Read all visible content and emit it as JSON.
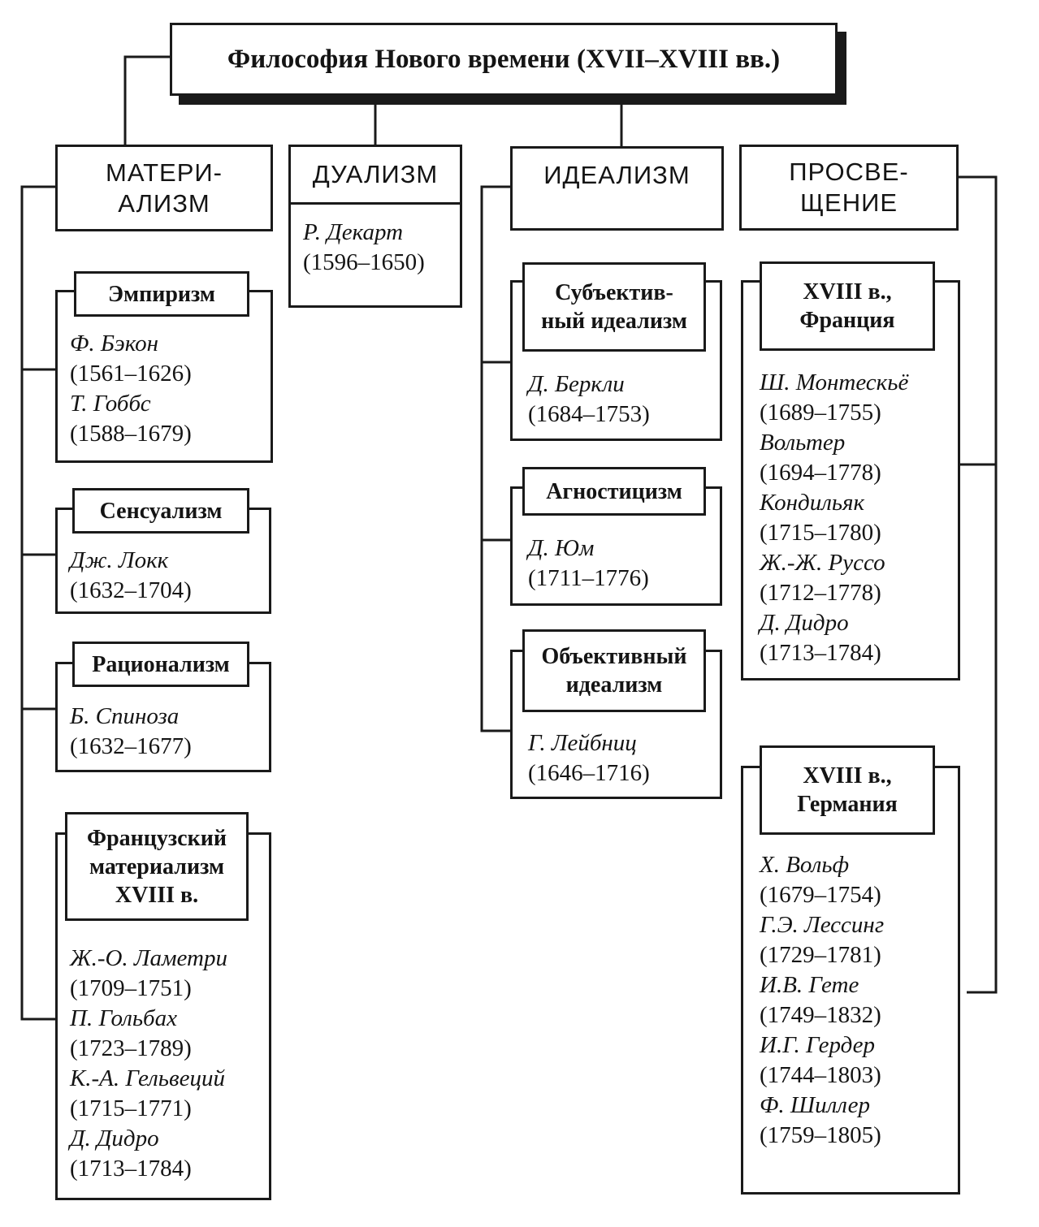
{
  "title": "Философия Нового времени (XVII–XVIII вв.)",
  "branches": {
    "materialism": {
      "label_lines": [
        "МАТЕРИ-",
        "АЛИЗМ"
      ],
      "groups": [
        {
          "label_lines": [
            "Эмпиризм"
          ],
          "people": [
            {
              "name": "Ф. Бэкон",
              "years": "(1561–1626)"
            },
            {
              "name": "Т. Гоббс",
              "years": "(1588–1679)"
            }
          ]
        },
        {
          "label_lines": [
            "Сенсуализм"
          ],
          "people": [
            {
              "name": "Дж. Локк",
              "years": "(1632–1704)"
            }
          ]
        },
        {
          "label_lines": [
            "Рационализм"
          ],
          "people": [
            {
              "name": "Б. Спиноза",
              "years": "(1632–1677)"
            }
          ]
        },
        {
          "label_lines": [
            "Французский",
            "материализм",
            "XVIII в."
          ],
          "people": [
            {
              "name": "Ж.-О. Ламетри",
              "years": "(1709–1751)"
            },
            {
              "name": "П. Гольбах",
              "years": "(1723–1789)"
            },
            {
              "name": "К.-А. Гельвеций",
              "years": "(1715–1771)"
            },
            {
              "name": "Д. Дидро",
              "years": "(1713–1784)"
            }
          ]
        }
      ]
    },
    "dualism": {
      "label_lines": [
        "ДУАЛИЗМ"
      ],
      "people": [
        {
          "name": "Р. Декарт",
          "years": "(1596–1650)"
        }
      ]
    },
    "idealism": {
      "label_lines": [
        "ИДЕАЛИЗМ"
      ],
      "groups": [
        {
          "label_lines": [
            "Субъектив-",
            "ный идеализм"
          ],
          "people": [
            {
              "name": "Д. Беркли",
              "years": "(1684–1753)"
            }
          ]
        },
        {
          "label_lines": [
            "Агностицизм"
          ],
          "people": [
            {
              "name": "Д. Юм",
              "years": "(1711–1776)"
            }
          ]
        },
        {
          "label_lines": [
            "Объективный",
            "идеализм"
          ],
          "people": [
            {
              "name": "Г. Лейбниц",
              "years": "(1646–1716)"
            }
          ]
        }
      ]
    },
    "enlightenment": {
      "label_lines": [
        "ПРОСВЕ-",
        "ЩЕНИЕ"
      ],
      "groups": [
        {
          "label_lines": [
            "XVIII в.,",
            "Франция"
          ],
          "people": [
            {
              "name": "Ш. Монтескьё",
              "years": "(1689–1755)"
            },
            {
              "name": "Вольтер",
              "years": "(1694–1778)"
            },
            {
              "name": "Кондильяк",
              "years": "(1715–1780)"
            },
            {
              "name": "Ж.-Ж. Руссо",
              "years": "(1712–1778)"
            },
            {
              "name": "Д. Дидро",
              "years": "(1713–1784)"
            }
          ]
        },
        {
          "label_lines": [
            "XVIII в.,",
            "Германия"
          ],
          "people": [
            {
              "name": "Х. Вольф",
              "years": "(1679–1754)"
            },
            {
              "name": "Г.Э. Лессинг",
              "years": "(1729–1781)"
            },
            {
              "name": "И.В. Гете",
              "years": "(1749–1832)"
            },
            {
              "name": "И.Г. Гердер",
              "years": "(1744–1803)"
            },
            {
              "name": "Ф. Шиллер",
              "years": "(1759–1805)"
            }
          ]
        }
      ]
    }
  }
}
